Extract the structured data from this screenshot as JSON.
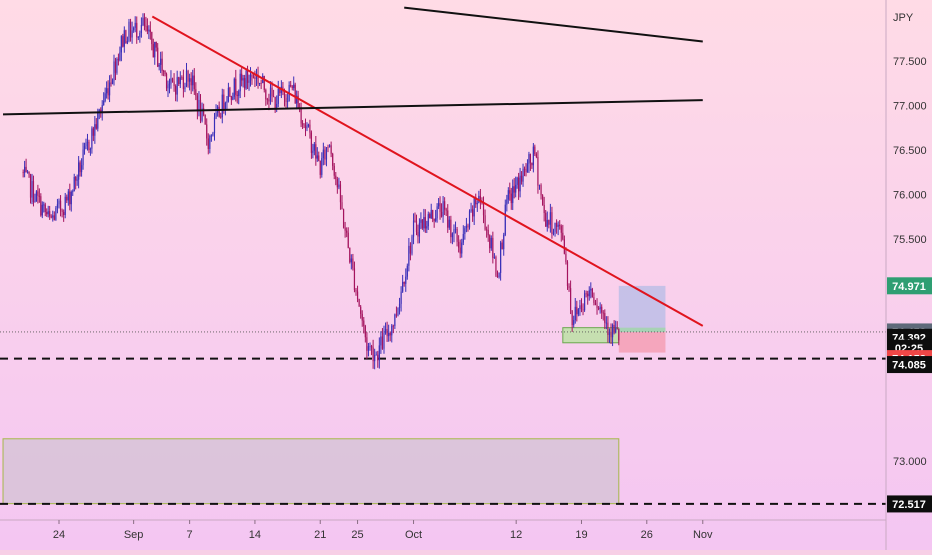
{
  "symbol_currency": "JPY",
  "theme": {
    "bg_top": "#ffdbe6",
    "bg_bottom": "#f4c6f2",
    "candle_up": "#3a2fb8",
    "candle_down": "#a4135e",
    "trendline": "#e0141e",
    "black_line": "#111111",
    "price_label_green": "#2e9e72",
    "price_label_red": "#ef4747",
    "price_label_gray": "#5f6a7a"
  },
  "chart_data": {
    "type": "candlestick",
    "ylim": [
      72.3,
      78.0
    ],
    "x_ticks": [
      {
        "label": "24",
        "date": "2020-08-24"
      },
      {
        "label": "Sep",
        "date": "2020-09-01"
      },
      {
        "label": "7",
        "date": "2020-09-07"
      },
      {
        "label": "14",
        "date": "2020-09-14"
      },
      {
        "label": "21",
        "date": "2020-09-21"
      },
      {
        "label": "25",
        "date": "2020-09-25"
      },
      {
        "label": "Oct",
        "date": "2020-10-01"
      },
      {
        "label": "12",
        "date": "2020-10-12"
      },
      {
        "label": "19",
        "date": "2020-10-19"
      },
      {
        "label": "26",
        "date": "2020-10-26"
      },
      {
        "label": "Nov",
        "date": "2020-11-01"
      }
    ],
    "y_ticks": [
      "77.500",
      "77.000",
      "76.500",
      "76.000",
      "75.500",
      "73.000"
    ],
    "price_series": [
      {
        "date": "2020-08-20",
        "price": 76.25
      },
      {
        "date": "2020-08-23",
        "price": 75.7
      },
      {
        "date": "2020-08-25",
        "price": 75.95
      },
      {
        "date": "2020-08-28",
        "price": 76.8
      },
      {
        "date": "2020-08-31",
        "price": 77.8
      },
      {
        "date": "2020-09-02",
        "price": 77.9
      },
      {
        "date": "2020-09-05",
        "price": 77.2
      },
      {
        "date": "2020-09-07",
        "price": 77.35
      },
      {
        "date": "2020-09-09",
        "price": 76.6
      },
      {
        "date": "2020-09-11",
        "price": 77.15
      },
      {
        "date": "2020-09-14",
        "price": 77.35
      },
      {
        "date": "2020-09-16",
        "price": 77.05
      },
      {
        "date": "2020-09-18",
        "price": 77.2
      },
      {
        "date": "2020-09-21",
        "price": 76.3
      },
      {
        "date": "2020-09-22",
        "price": 76.6
      },
      {
        "date": "2020-09-24",
        "price": 75.4
      },
      {
        "date": "2020-09-26",
        "price": 74.3
      },
      {
        "date": "2020-09-27",
        "price": 74.2
      },
      {
        "date": "2020-09-29",
        "price": 74.6
      },
      {
        "date": "2020-10-01",
        "price": 75.6
      },
      {
        "date": "2020-10-04",
        "price": 75.85
      },
      {
        "date": "2020-10-06",
        "price": 75.4
      },
      {
        "date": "2020-10-08",
        "price": 76.0
      },
      {
        "date": "2020-10-10",
        "price": 75.1
      },
      {
        "date": "2020-10-11",
        "price": 75.9
      },
      {
        "date": "2020-10-14",
        "price": 76.45
      },
      {
        "date": "2020-10-15",
        "price": 75.75
      },
      {
        "date": "2020-10-17",
        "price": 75.55
      },
      {
        "date": "2020-10-18",
        "price": 74.6
      },
      {
        "date": "2020-10-20",
        "price": 74.95
      },
      {
        "date": "2020-10-22",
        "price": 74.5
      },
      {
        "date": "2020-10-23",
        "price": 74.4
      }
    ],
    "lines": [
      {
        "name": "red-trendline",
        "color": "#e0141e",
        "from": {
          "date": "2020-09-03",
          "price": 78.0
        },
        "to": {
          "date": "2020-11-01",
          "price": 74.52
        }
      },
      {
        "name": "black-line-upper",
        "color": "#111111",
        "from": {
          "date": "2020-09-30",
          "price": 78.1
        },
        "to": {
          "date": "2020-11-01",
          "price": 77.72
        }
      },
      {
        "name": "black-line-mid",
        "color": "#111111",
        "from": {
          "date": "2020-08-18",
          "price": 76.9
        },
        "to": {
          "date": "2020-11-01",
          "price": 77.06
        }
      }
    ],
    "dashed_lines": [
      {
        "price": 74.152
      },
      {
        "price": 72.517
      }
    ],
    "dotted_line": {
      "price": 74.452
    },
    "zones": [
      {
        "name": "demand-zone-green",
        "from": "2020-10-17",
        "to": "2020-10-23",
        "top": 74.5,
        "bottom": 74.33,
        "fill": "#b9e3a0",
        "stroke": "#6aa84f"
      },
      {
        "name": "target-zone-blue",
        "from": "2020-10-23",
        "to": "2020-10-28",
        "top": 74.97,
        "bottom": 74.45,
        "fill": "#b9bde6",
        "stroke": "none"
      },
      {
        "name": "position-entry-green",
        "from": "2020-10-23",
        "to": "2020-10-28",
        "top": 74.5,
        "bottom": 74.45,
        "fill": "#9fd6a8",
        "stroke": "none"
      },
      {
        "name": "stop-zone-red",
        "from": "2020-10-23",
        "to": "2020-10-28",
        "top": 74.45,
        "bottom": 74.22,
        "fill": "#f49cb0",
        "stroke": "none"
      },
      {
        "name": "lower-support-zone",
        "from": "2020-08-18",
        "to": "2020-10-23",
        "top": 73.25,
        "bottom": 72.52,
        "fill": "#d6c3d6",
        "stroke": "#a5b84a"
      }
    ],
    "price_labels": [
      {
        "text": "74.971",
        "price": 74.971,
        "kind": "green"
      },
      {
        "text": "74.452",
        "price": 74.452,
        "kind": "gray"
      },
      {
        "text": "74.392",
        "price": 74.392,
        "kind": "black"
      },
      {
        "text": "02:25",
        "price": 74.27,
        "kind": "black"
      },
      {
        "text": "74.152",
        "price": 74.152,
        "kind": "red"
      },
      {
        "text": "74.085",
        "price": 74.085,
        "kind": "black"
      },
      {
        "text": "72.517",
        "price": 72.517,
        "kind": "black"
      }
    ]
  }
}
